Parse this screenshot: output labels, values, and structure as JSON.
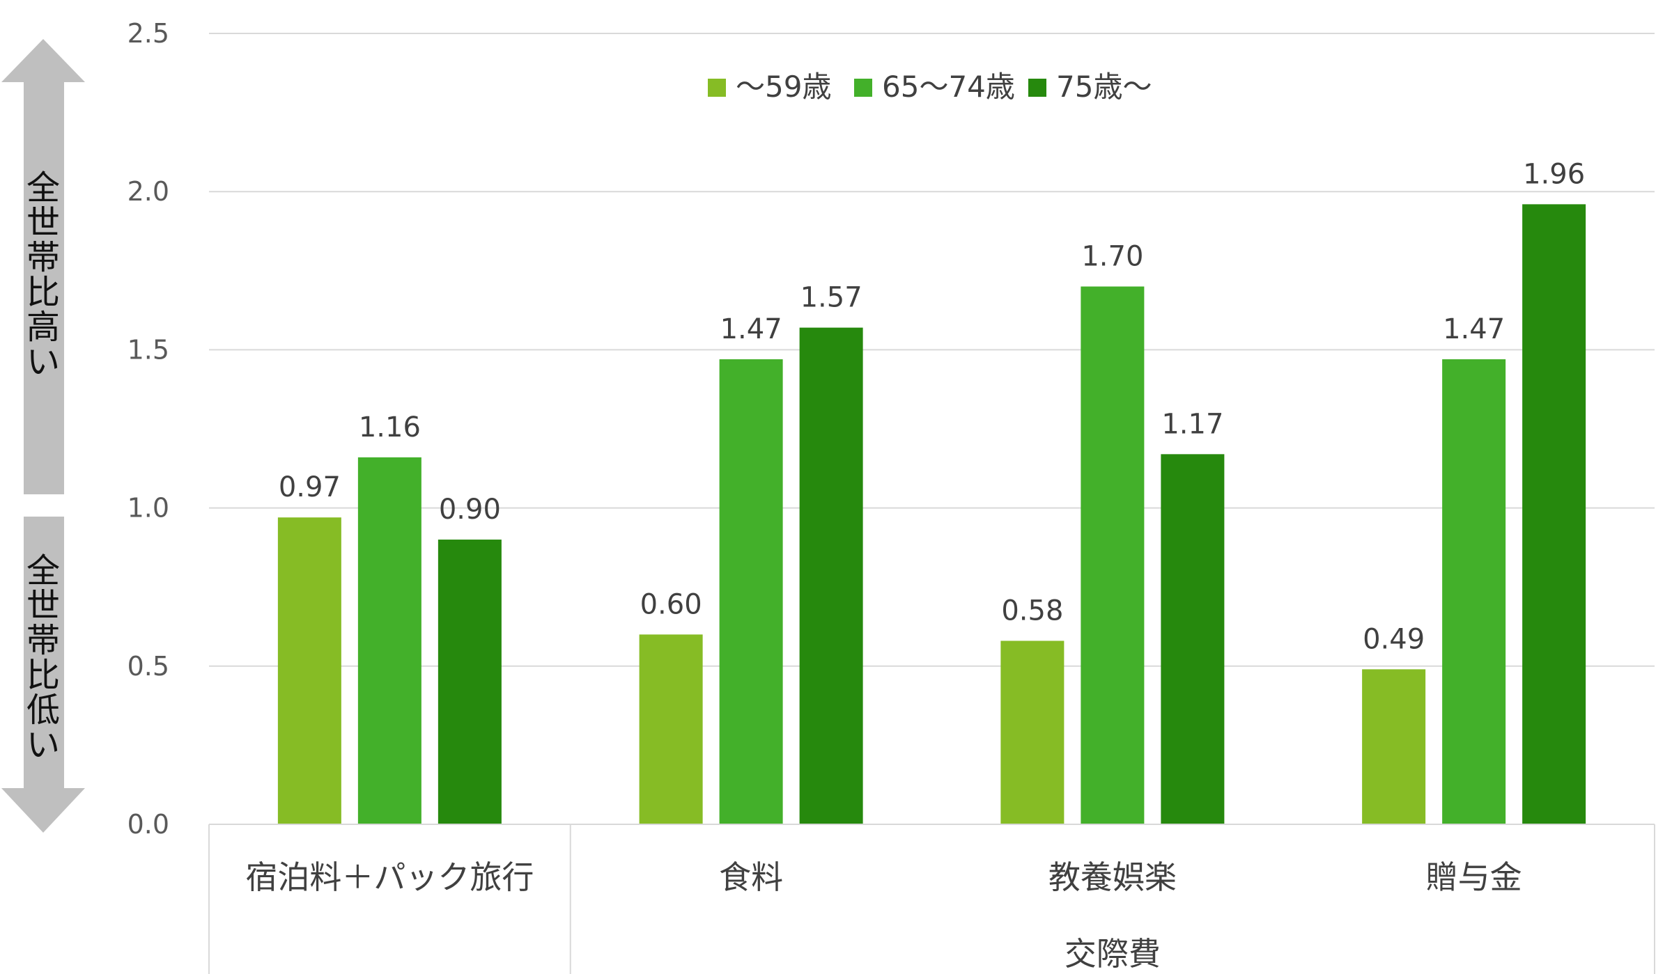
{
  "chart_data": {
    "type": "bar",
    "categories": [
      "宿泊料＋パック旅行",
      "食料",
      "教養娯楽",
      "贈与金"
    ],
    "group_labels": [
      {
        "label": "交際費",
        "spans": [
          "食料",
          "教養娯楽",
          "贈与金"
        ]
      }
    ],
    "series": [
      {
        "name": "～59歳",
        "values": [
          0.97,
          0.6,
          0.58,
          0.49
        ],
        "color": "#86bc25"
      },
      {
        "name": "65～74歳",
        "values": [
          1.16,
          1.47,
          1.7,
          1.47
        ],
        "color": "#43b02a"
      },
      {
        "name": "75歳～",
        "values": [
          0.9,
          1.57,
          1.17,
          1.96
        ],
        "color": "#26890d"
      }
    ],
    "data_labels": [
      [
        "0.97",
        "0.60",
        "0.58",
        "0.49"
      ],
      [
        "1.16",
        "1.47",
        "1.70",
        "1.47"
      ],
      [
        "0.90",
        "1.57",
        "1.17",
        "1.96"
      ]
    ],
    "y_ticks": [
      "0.0",
      "0.5",
      "1.0",
      "1.5",
      "2.0",
      "2.5"
    ],
    "ylim": [
      0,
      2.5
    ],
    "grid": true,
    "legend_position": "top-center",
    "side_annotations": {
      "upper": "全世帯比高い",
      "lower": "全世帯比低い"
    }
  }
}
